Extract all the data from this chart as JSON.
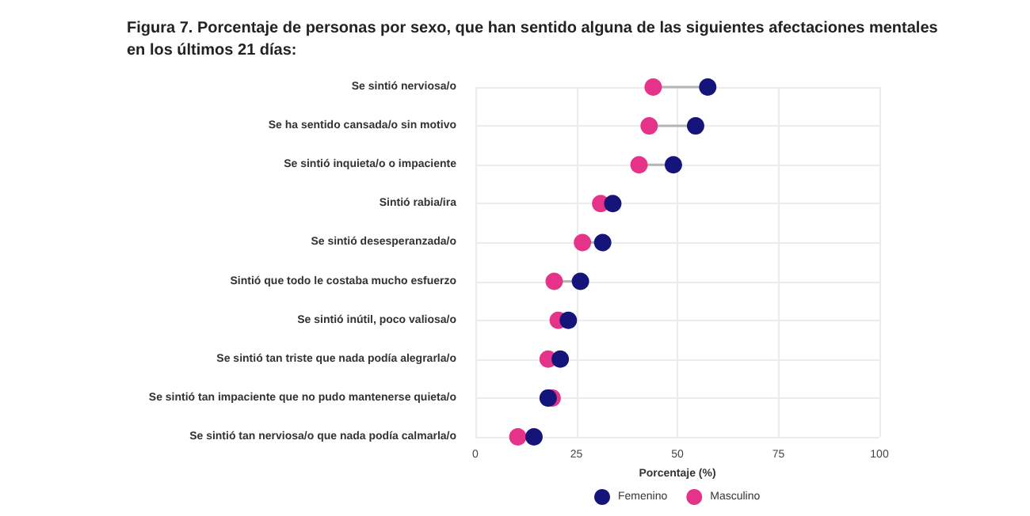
{
  "chart_data": {
    "type": "scatter",
    "title": "Figura 7. Porcentaje de personas por sexo, que han sentido alguna de las siguientes afectaciones mentales en los últimos 21 días:",
    "categories": [
      "Se sintió nerviosa/o",
      "Se ha sentido cansada/o sin motivo",
      "Se sintió inquieta/o o impaciente",
      "Sintió rabia/ira",
      "Se sintió desesperanzada/o",
      "Sintió que todo le costaba mucho esfuerzo",
      "Se sintió inútil, poco valiosa/o",
      "Se sintió tan triste que nada podía alegrarla/o",
      "Se sintió tan impaciente que no pudo mantenerse quieta/o",
      "Se sintió tan nerviosa/o que nada podía calmarla/o"
    ],
    "series": [
      {
        "name": "Femenino",
        "color": "#14147a",
        "values": [
          57.5,
          54.5,
          49,
          34,
          31.5,
          26,
          23,
          21,
          18,
          14.5
        ]
      },
      {
        "name": "Masculino",
        "color": "#e6338a",
        "values": [
          44,
          43,
          40.5,
          31,
          26.5,
          19.5,
          20.5,
          18,
          19,
          10.5
        ]
      }
    ],
    "xlabel": "Porcentaje (%)",
    "xlim": [
      0,
      100
    ],
    "xticks": [
      0,
      25,
      50,
      75,
      100
    ],
    "orientation": "horizontal",
    "grid": true,
    "legend": "bottom",
    "marker": "circle"
  }
}
